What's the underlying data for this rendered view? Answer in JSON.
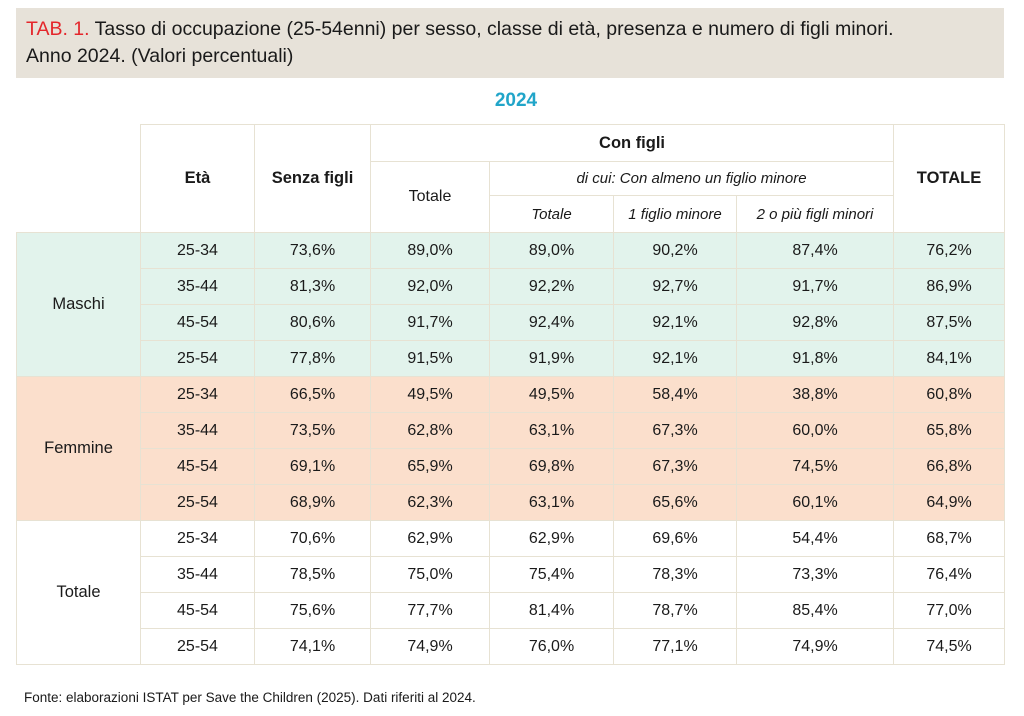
{
  "title": {
    "prefix": "TAB. 1.",
    "text": "Tasso di occupazione (25-54enni) per sesso, classe di età, presenza e numero di figli minori.",
    "line2": "Anno 2024. (Valori percentuali)"
  },
  "year": "2024",
  "headers": {
    "eta": "Età",
    "senza_figli": "Senza figli",
    "con_figli": "Con figli",
    "di_cui": "di cui: Con almeno un figlio minore",
    "totale_con": "Totale",
    "totale_sub": "Totale",
    "uno_figlio": "1 figlio minore",
    "due_figli": "2 o più figli minori",
    "totale": "TOTALE"
  },
  "groups": [
    {
      "label": "Maschi",
      "rows": [
        [
          "25-34",
          "73,6%",
          "89,0%",
          "89,0%",
          "90,2%",
          "87,4%",
          "76,2%"
        ],
        [
          "35-44",
          "81,3%",
          "92,0%",
          "92,2%",
          "92,7%",
          "91,7%",
          "86,9%"
        ],
        [
          "45-54",
          "80,6%",
          "91,7%",
          "92,4%",
          "92,1%",
          "92,8%",
          "87,5%"
        ],
        [
          "25-54",
          "77,8%",
          "91,5%",
          "91,9%",
          "92,1%",
          "91,8%",
          "84,1%"
        ]
      ]
    },
    {
      "label": "Femmine",
      "rows": [
        [
          "25-34",
          "66,5%",
          "49,5%",
          "49,5%",
          "58,4%",
          "38,8%",
          "60,8%"
        ],
        [
          "35-44",
          "73,5%",
          "62,8%",
          "63,1%",
          "67,3%",
          "60,0%",
          "65,8%"
        ],
        [
          "45-54",
          "69,1%",
          "65,9%",
          "69,8%",
          "67,3%",
          "74,5%",
          "66,8%"
        ],
        [
          "25-54",
          "68,9%",
          "62,3%",
          "63,1%",
          "65,6%",
          "60,1%",
          "64,9%"
        ]
      ]
    },
    {
      "label": "Totale",
      "rows": [
        [
          "25-34",
          "70,6%",
          "62,9%",
          "62,9%",
          "69,6%",
          "54,4%",
          "68,7%"
        ],
        [
          "35-44",
          "78,5%",
          "75,0%",
          "75,4%",
          "78,3%",
          "73,3%",
          "76,4%"
        ],
        [
          "45-54",
          "75,6%",
          "77,7%",
          "81,4%",
          "78,7%",
          "85,4%",
          "77,0%"
        ],
        [
          "25-54",
          "74,1%",
          "74,9%",
          "76,0%",
          "77,1%",
          "74,9%",
          "74,5%"
        ]
      ]
    }
  ],
  "colors": {
    "title_bg": "#e7e2d9",
    "title_prefix": "#e4262b",
    "year": "#21a5c9",
    "maschi_bg": "#e2f3ec",
    "femmine_bg": "#fbdfcc",
    "border": "#e7e2d3"
  },
  "footer": "Fonte: elaborazioni ISTAT per Save the Children (2025). Dati riferiti al 2024."
}
